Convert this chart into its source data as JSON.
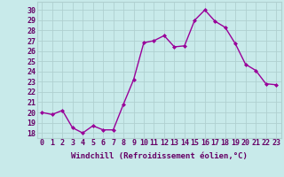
{
  "x": [
    0,
    1,
    2,
    3,
    4,
    5,
    6,
    7,
    8,
    9,
    10,
    11,
    12,
    13,
    14,
    15,
    16,
    17,
    18,
    19,
    20,
    21,
    22,
    23
  ],
  "y": [
    20.0,
    19.8,
    20.2,
    18.5,
    18.0,
    18.7,
    18.3,
    18.3,
    20.8,
    23.2,
    26.8,
    27.0,
    27.5,
    26.4,
    26.5,
    29.0,
    30.0,
    28.9,
    28.3,
    26.7,
    24.7,
    24.1,
    22.8,
    22.7
  ],
  "line_color": "#990099",
  "marker": "D",
  "marker_size": 2,
  "line_width": 1.0,
  "bg_color": "#c8eaea",
  "grid_color": "#b0d0d0",
  "xlabel": "Windchill (Refroidissement éolien,°C)",
  "xlabel_color": "#660066",
  "ylabel_ticks": [
    18,
    19,
    20,
    21,
    22,
    23,
    24,
    25,
    26,
    27,
    28,
    29,
    30
  ],
  "ylim": [
    17.5,
    30.8
  ],
  "xlim": [
    -0.5,
    23.5
  ],
  "xlabel_fontsize": 6.5,
  "tick_fontsize": 6
}
